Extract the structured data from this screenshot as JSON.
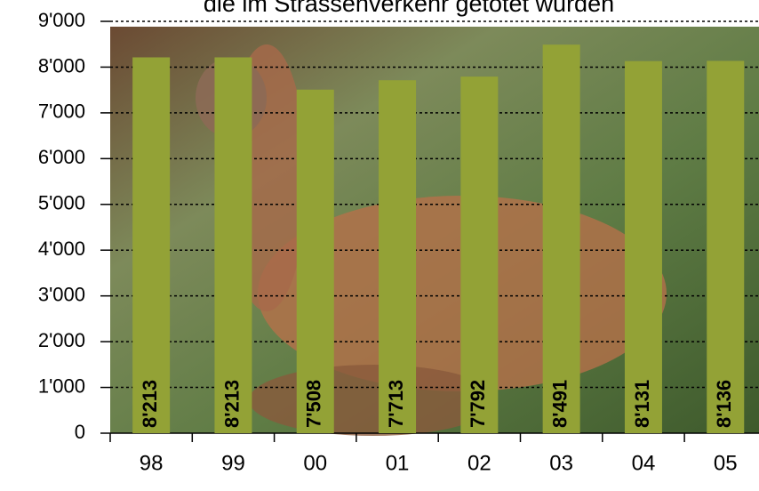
{
  "chart_data": {
    "type": "bar",
    "title": "die im Strassenverkehr getötet wurden",
    "categories": [
      "98",
      "99",
      "00",
      "01",
      "02",
      "03",
      "04",
      "05"
    ],
    "values": [
      8213,
      8213,
      7508,
      7713,
      7792,
      8491,
      8131,
      8136
    ],
    "value_labels": [
      "8'213",
      "8'213",
      "7'508",
      "7'713",
      "7'792",
      "8'491",
      "8'131",
      "8'136"
    ],
    "color": "#93a236",
    "ylim": [
      0,
      9000
    ],
    "yticks": [
      {
        "value": 0,
        "label": "0"
      },
      {
        "value": 1000,
        "label": "1'000"
      },
      {
        "value": 2000,
        "label": "2'000"
      },
      {
        "value": 3000,
        "label": "3'000"
      },
      {
        "value": 4000,
        "label": "4'000"
      },
      {
        "value": 5000,
        "label": "5'000"
      },
      {
        "value": 6000,
        "label": "6'000"
      },
      {
        "value": 7000,
        "label": "7'000"
      },
      {
        "value": 8000,
        "label": "8'000"
      },
      {
        "value": 9000,
        "label": "9'000"
      }
    ],
    "grid": true
  }
}
